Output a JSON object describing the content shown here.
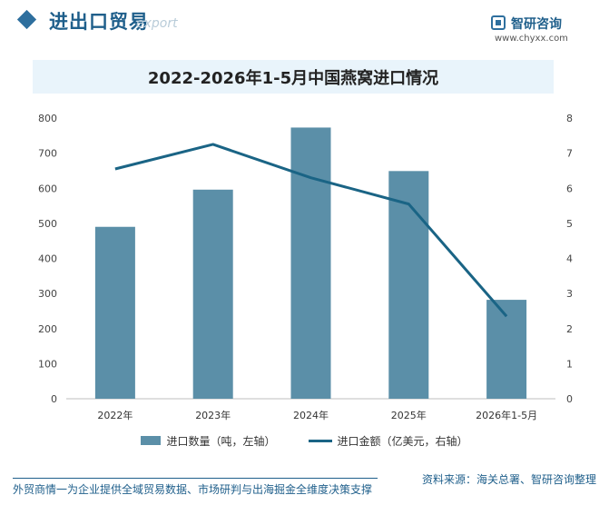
{
  "header": {
    "section_title": "进出口贸易",
    "section_sub": "export",
    "brand_name": "智研咨询",
    "brand_url": "www.chyxx.com"
  },
  "chart_data": {
    "type": "bar",
    "title": "2022-2026年1-5月中国燕窝进口情况",
    "categories": [
      "2022年",
      "2023年",
      "2024年",
      "2025年",
      "2026年1-5月"
    ],
    "series": [
      {
        "name": "进口数量（吨，左轴）",
        "type": "bar",
        "axis": "left",
        "color": "#5b8fa8",
        "values": [
          490,
          596,
          773,
          649,
          282
        ]
      },
      {
        "name": "进口金额（亿美元，右轴）",
        "type": "line",
        "axis": "right",
        "color": "#1a6485",
        "values": [
          6.55,
          7.25,
          6.3,
          5.55,
          2.35
        ]
      }
    ],
    "y_left": {
      "range": [
        0,
        800
      ],
      "ticks": [
        "0",
        "100",
        "200",
        "300",
        "400",
        "500",
        "600",
        "700",
        "800"
      ]
    },
    "y_right": {
      "range": [
        0,
        8
      ],
      "ticks": [
        "0",
        "1",
        "2",
        "3",
        "4",
        "5",
        "6",
        "7",
        "8"
      ]
    },
    "grid": false,
    "legend_position": "bottom"
  },
  "footer": {
    "left": "外贸商情一为企业提供全域贸易数据、市场研判与出海掘金全维度决策支撑",
    "right": "资料来源：海关总署、智研咨询整理"
  }
}
